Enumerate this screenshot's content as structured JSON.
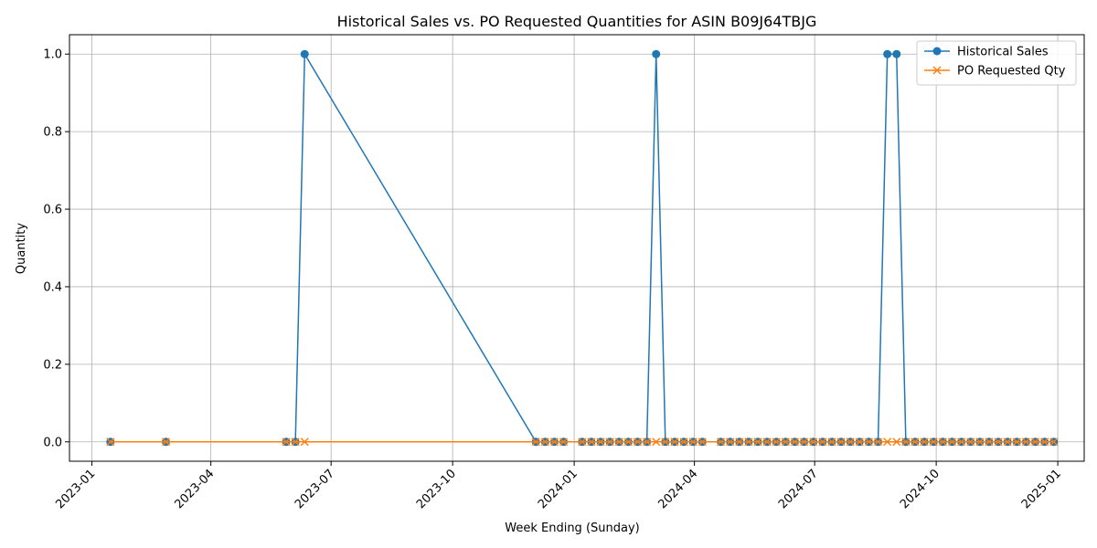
{
  "chart_data": {
    "type": "line",
    "title": "Historical Sales vs. PO Requested Quantities for ASIN B09J64TBJG",
    "xlabel": "Week Ending (Sunday)",
    "ylabel": "Quantity",
    "xlim": [
      "2022-12-15",
      "2025-01-21"
    ],
    "ylim": [
      -0.05,
      1.05
    ],
    "grid": true,
    "legend_position": "top-right",
    "x_ticks": [
      "2023-01-01",
      "2023-04-01",
      "2023-07-01",
      "2023-10-01",
      "2024-01-01",
      "2024-04-01",
      "2024-07-01",
      "2024-10-01",
      "2025-01-01"
    ],
    "x_tick_labels": [
      "2023-01",
      "2023-04",
      "2023-07",
      "2023-10",
      "2024-01",
      "2024-04",
      "2024-07",
      "2024-10",
      "2025-01"
    ],
    "y_ticks": [
      0.0,
      0.2,
      0.4,
      0.6,
      0.8,
      1.0
    ],
    "y_tick_labels": [
      "0.0",
      "0.2",
      "0.4",
      "0.6",
      "0.8",
      "1.0"
    ],
    "series": [
      {
        "name": "Historical Sales",
        "color": "#1f77b4",
        "marker": "circle",
        "points": [
          [
            "2023-01-15",
            0
          ],
          [
            "2023-02-26",
            0
          ],
          [
            "2023-05-28",
            0
          ],
          [
            "2023-06-04",
            0
          ],
          [
            "2023-06-11",
            1
          ],
          [
            "2023-12-03",
            0
          ],
          [
            "2023-12-10",
            0
          ],
          [
            "2023-12-17",
            0
          ],
          [
            "2023-12-24",
            0
          ],
          [
            "2024-01-07",
            0
          ],
          [
            "2024-01-14",
            0
          ],
          [
            "2024-01-21",
            0
          ],
          [
            "2024-01-28",
            0
          ],
          [
            "2024-02-04",
            0
          ],
          [
            "2024-02-11",
            0
          ],
          [
            "2024-02-18",
            0
          ],
          [
            "2024-02-25",
            0
          ],
          [
            "2024-03-03",
            1
          ],
          [
            "2024-03-10",
            0
          ],
          [
            "2024-03-17",
            0
          ],
          [
            "2024-03-24",
            0
          ],
          [
            "2024-03-31",
            0
          ],
          [
            "2024-04-07",
            0
          ],
          [
            "2024-04-21",
            0
          ],
          [
            "2024-04-28",
            0
          ],
          [
            "2024-05-05",
            0
          ],
          [
            "2024-05-12",
            0
          ],
          [
            "2024-05-19",
            0
          ],
          [
            "2024-05-26",
            0
          ],
          [
            "2024-06-02",
            0
          ],
          [
            "2024-06-09",
            0
          ],
          [
            "2024-06-16",
            0
          ],
          [
            "2024-06-23",
            0
          ],
          [
            "2024-06-30",
            0
          ],
          [
            "2024-07-07",
            0
          ],
          [
            "2024-07-14",
            0
          ],
          [
            "2024-07-21",
            0
          ],
          [
            "2024-07-28",
            0
          ],
          [
            "2024-08-04",
            0
          ],
          [
            "2024-08-11",
            0
          ],
          [
            "2024-08-18",
            0
          ],
          [
            "2024-08-25",
            1
          ],
          [
            "2024-09-01",
            1
          ],
          [
            "2024-09-08",
            0
          ],
          [
            "2024-09-15",
            0
          ],
          [
            "2024-09-22",
            0
          ],
          [
            "2024-09-29",
            0
          ],
          [
            "2024-10-06",
            0
          ],
          [
            "2024-10-13",
            0
          ],
          [
            "2024-10-20",
            0
          ],
          [
            "2024-10-27",
            0
          ],
          [
            "2024-11-03",
            0
          ],
          [
            "2024-11-10",
            0
          ],
          [
            "2024-11-17",
            0
          ],
          [
            "2024-11-24",
            0
          ],
          [
            "2024-12-01",
            0
          ],
          [
            "2024-12-08",
            0
          ],
          [
            "2024-12-15",
            0
          ],
          [
            "2024-12-22",
            0
          ],
          [
            "2024-12-29",
            0
          ]
        ]
      },
      {
        "name": "PO Requested Qty",
        "color": "#ff7f0e",
        "marker": "x",
        "points": [
          [
            "2023-01-15",
            0
          ],
          [
            "2023-02-26",
            0
          ],
          [
            "2023-05-28",
            0
          ],
          [
            "2023-06-04",
            0
          ],
          [
            "2023-06-11",
            0
          ],
          [
            "2023-12-03",
            0
          ],
          [
            "2023-12-10",
            0
          ],
          [
            "2023-12-17",
            0
          ],
          [
            "2023-12-24",
            0
          ],
          [
            "2024-01-07",
            0
          ],
          [
            "2024-01-14",
            0
          ],
          [
            "2024-01-21",
            0
          ],
          [
            "2024-01-28",
            0
          ],
          [
            "2024-02-04",
            0
          ],
          [
            "2024-02-11",
            0
          ],
          [
            "2024-02-18",
            0
          ],
          [
            "2024-02-25",
            0
          ],
          [
            "2024-03-03",
            0
          ],
          [
            "2024-03-10",
            0
          ],
          [
            "2024-03-17",
            0
          ],
          [
            "2024-03-24",
            0
          ],
          [
            "2024-03-31",
            0
          ],
          [
            "2024-04-07",
            0
          ],
          [
            "2024-04-21",
            0
          ],
          [
            "2024-04-28",
            0
          ],
          [
            "2024-05-05",
            0
          ],
          [
            "2024-05-12",
            0
          ],
          [
            "2024-05-19",
            0
          ],
          [
            "2024-05-26",
            0
          ],
          [
            "2024-06-02",
            0
          ],
          [
            "2024-06-09",
            0
          ],
          [
            "2024-06-16",
            0
          ],
          [
            "2024-06-23",
            0
          ],
          [
            "2024-06-30",
            0
          ],
          [
            "2024-07-07",
            0
          ],
          [
            "2024-07-14",
            0
          ],
          [
            "2024-07-21",
            0
          ],
          [
            "2024-07-28",
            0
          ],
          [
            "2024-08-04",
            0
          ],
          [
            "2024-08-11",
            0
          ],
          [
            "2024-08-18",
            0
          ],
          [
            "2024-08-25",
            0
          ],
          [
            "2024-09-01",
            0
          ],
          [
            "2024-09-08",
            0
          ],
          [
            "2024-09-15",
            0
          ],
          [
            "2024-09-22",
            0
          ],
          [
            "2024-09-29",
            0
          ],
          [
            "2024-10-06",
            0
          ],
          [
            "2024-10-13",
            0
          ],
          [
            "2024-10-20",
            0
          ],
          [
            "2024-10-27",
            0
          ],
          [
            "2024-11-03",
            0
          ],
          [
            "2024-11-10",
            0
          ],
          [
            "2024-11-17",
            0
          ],
          [
            "2024-11-24",
            0
          ],
          [
            "2024-12-01",
            0
          ],
          [
            "2024-12-08",
            0
          ],
          [
            "2024-12-15",
            0
          ],
          [
            "2024-12-22",
            0
          ],
          [
            "2024-12-29",
            0
          ]
        ]
      }
    ]
  }
}
